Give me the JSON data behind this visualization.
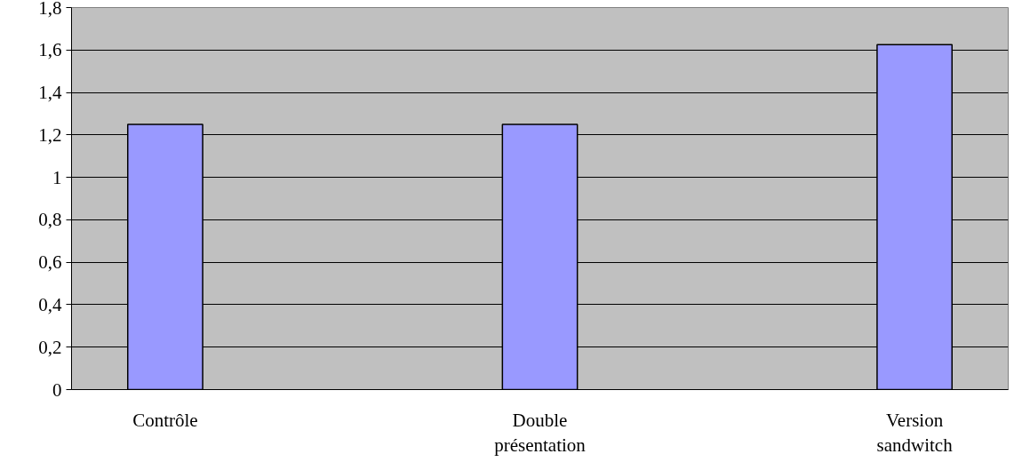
{
  "chart_data": {
    "type": "bar",
    "categories": [
      "Contrôle",
      "Double\nprésentation",
      "Version\nsandwitch"
    ],
    "values": [
      1.25,
      1.25,
      1.625
    ],
    "color": "#9999ff",
    "ylim": [
      0,
      1.8
    ],
    "yticks": [
      {
        "value": 0,
        "label": "0"
      },
      {
        "value": 0.2,
        "label": "0,2"
      },
      {
        "value": 0.4,
        "label": "0,4"
      },
      {
        "value": 0.6,
        "label": "0,6"
      },
      {
        "value": 0.8,
        "label": "0,8"
      },
      {
        "value": 1,
        "label": "1"
      },
      {
        "value": 1.2,
        "label": "1,2"
      },
      {
        "value": 1.4,
        "label": "1,4"
      },
      {
        "value": 1.6,
        "label": "1,6"
      },
      {
        "value": 1.8,
        "label": "1,8"
      }
    ],
    "grid": "y"
  }
}
